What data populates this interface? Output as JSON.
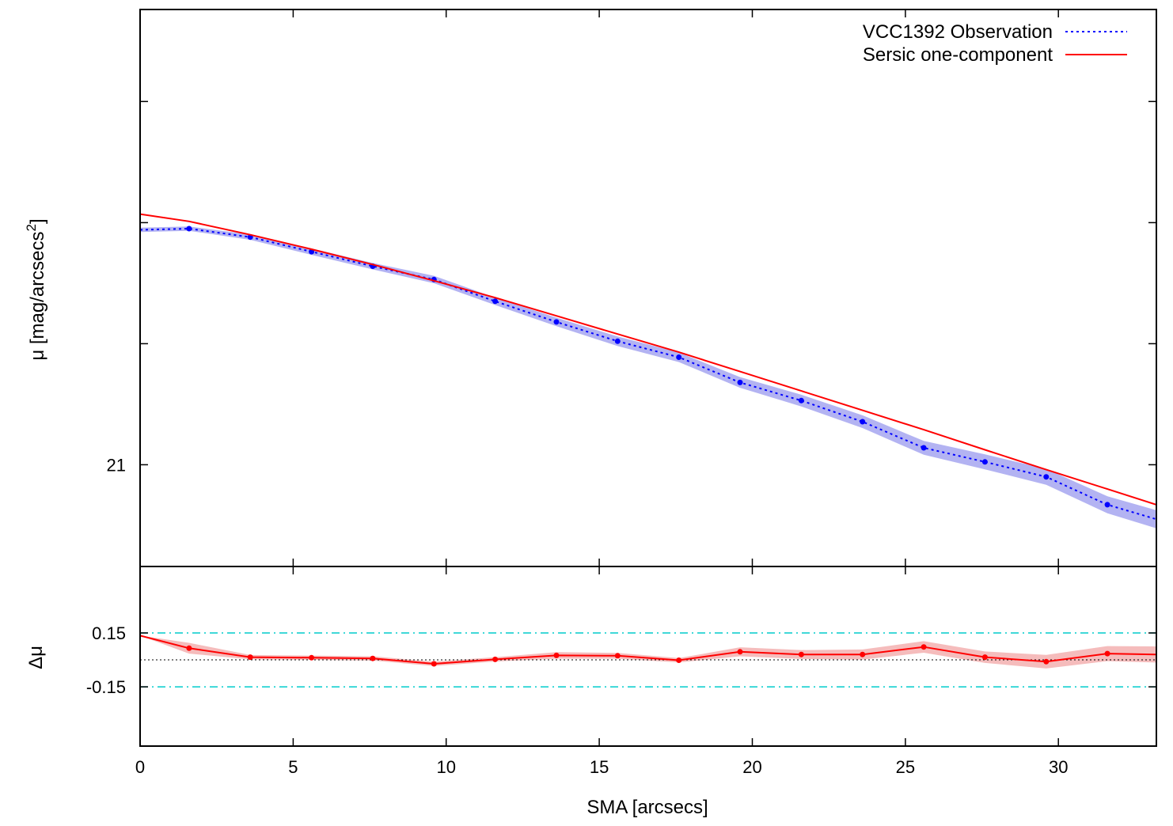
{
  "chart_data": [
    {
      "type": "line",
      "panel": "profile",
      "ylabel_main": "μ [mag/arcsecs",
      "ylabel_sup": "2",
      "ylabel_end": "]",
      "ylim": [
        21.42,
        19.12
      ],
      "y_inverted": true,
      "xlim": [
        0,
        33.2
      ],
      "yticks": [
        21
      ],
      "yticks_unlabeled": [
        20.5,
        20.0,
        19.5
      ],
      "legend": "top-right",
      "series": [
        {
          "name": "VCC1392 Observation",
          "style": "dotted-points",
          "color": "#0000ff",
          "band_color": "#9999ee",
          "x": [
            0,
            1.6,
            3.6,
            5.6,
            7.6,
            9.6,
            11.6,
            13.6,
            15.6,
            17.6,
            19.6,
            21.6,
            23.6,
            25.6,
            27.6,
            29.6,
            31.6,
            33.2
          ],
          "y": [
            20.03,
            20.025,
            20.06,
            20.12,
            20.18,
            20.235,
            20.325,
            20.41,
            20.49,
            20.556,
            20.66,
            20.735,
            20.822,
            20.93,
            20.988,
            21.05,
            21.165,
            21.225
          ],
          "err": [
            0.004,
            0.004,
            0.005,
            0.006,
            0.006,
            0.007,
            0.007,
            0.008,
            0.009,
            0.009,
            0.01,
            0.011,
            0.012,
            0.013,
            0.014,
            0.015,
            0.016,
            0.017
          ]
        },
        {
          "name": "Sersic one-component",
          "style": "solid",
          "color": "#ff0000",
          "x": [
            0,
            1.6,
            3.6,
            5.6,
            7.6,
            9.6,
            11.6,
            13.6,
            15.6,
            17.6,
            19.6,
            21.6,
            23.6,
            25.6,
            27.6,
            29.6,
            31.6,
            33.2
          ],
          "y": [
            19.965,
            19.995,
            20.05,
            20.11,
            20.173,
            20.24,
            20.31,
            20.385,
            20.46,
            20.535,
            20.615,
            20.695,
            20.775,
            20.855,
            20.938,
            21.02,
            21.1,
            21.165
          ]
        }
      ]
    },
    {
      "type": "line",
      "panel": "residual",
      "ylabel": "Δμ",
      "xlabel": "SMA [arcsecs]",
      "xlim": [
        0,
        33.2
      ],
      "xticks": [
        0,
        5,
        10,
        15,
        20,
        25,
        30
      ],
      "ylim": [
        -0.48,
        0.52
      ],
      "yticks": [
        0.15,
        -0.15
      ],
      "yticks_labels": [
        "0.15",
        "-0.15"
      ],
      "reference_lines": [
        {
          "y": 0.15,
          "color": "#00cccc",
          "style": "dash-dot"
        },
        {
          "y": -0.15,
          "color": "#00cccc",
          "style": "dash-dot"
        },
        {
          "y": 0,
          "color": "#000000",
          "style": "dotted"
        }
      ],
      "series": [
        {
          "style": "solid-points",
          "color": "#ff0000",
          "band_color": "#f2a5a5",
          "x": [
            0,
            1.6,
            3.6,
            5.6,
            7.6,
            9.6,
            11.6,
            13.6,
            15.6,
            17.6,
            19.6,
            21.6,
            23.6,
            25.6,
            27.6,
            29.6,
            31.6,
            33.2
          ],
          "y": [
            0.135,
            0.065,
            0.015,
            0.012,
            0.008,
            -0.022,
            0.003,
            0.025,
            0.023,
            -0.002,
            0.045,
            0.03,
            0.03,
            0.072,
            0.015,
            -0.01,
            0.035,
            0.03
          ],
          "err": [
            0.0,
            0.03,
            0.012,
            0.012,
            0.012,
            0.012,
            0.012,
            0.018,
            0.016,
            0.012,
            0.025,
            0.025,
            0.028,
            0.032,
            0.032,
            0.038,
            0.042,
            0.045
          ]
        }
      ]
    }
  ]
}
